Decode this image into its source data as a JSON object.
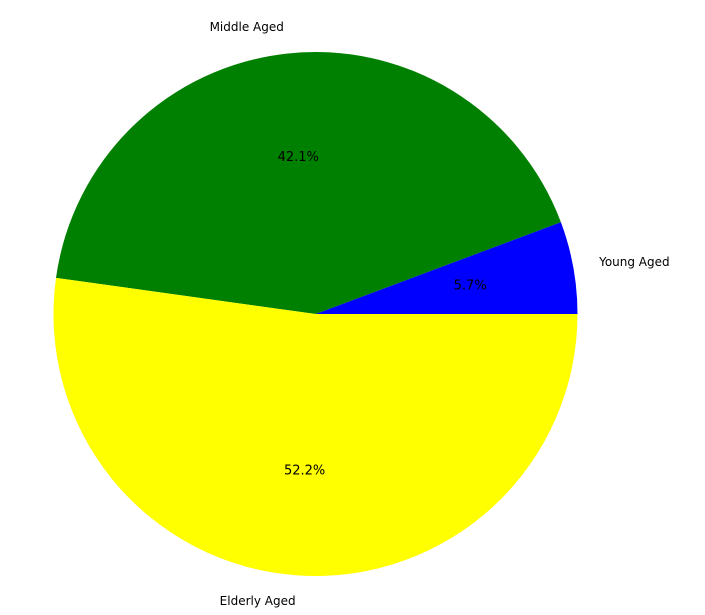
{
  "chart_data": {
    "type": "pie",
    "title": "",
    "start_angle_deg": 0,
    "direction": "counterclockwise",
    "slices": [
      {
        "label": "Young Aged",
        "value": 5.7,
        "percent_label": "5.7%",
        "color": "#0000ff"
      },
      {
        "label": "Middle Aged",
        "value": 42.1,
        "percent_label": "42.1%",
        "color": "#008000"
      },
      {
        "label": "Elderly Aged",
        "value": 52.2,
        "percent_label": "52.2%",
        "color": "#ffff00"
      }
    ]
  }
}
